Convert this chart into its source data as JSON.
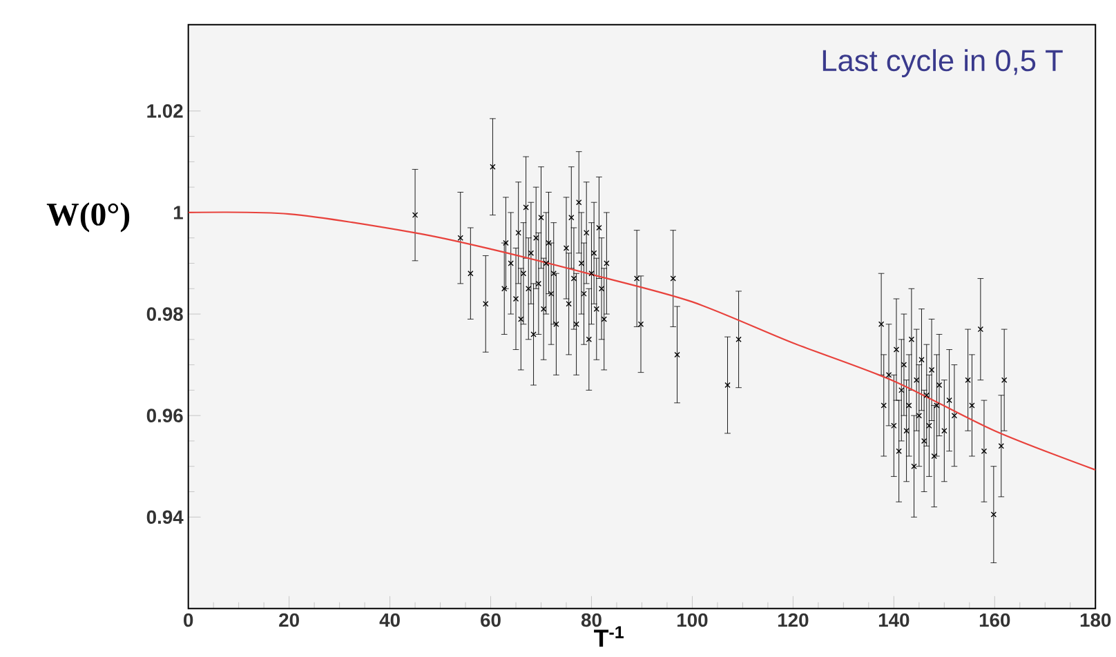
{
  "chart_data": {
    "type": "scatter",
    "title": "Last cycle in 0,5 T",
    "xlabel": "T$^{-1}$",
    "ylabel": "W(0°)",
    "xlim": [
      0,
      180
    ],
    "ylim": [
      0.922,
      1.037
    ],
    "xticks": [
      0,
      20,
      40,
      60,
      80,
      100,
      120,
      140,
      160,
      180
    ],
    "yticks": [
      0.94,
      0.96,
      0.98,
      1,
      1.02
    ],
    "series": [
      {
        "color": "#000000",
        "marker": "cross",
        "x": [
          45,
          54,
          56,
          59,
          60.4,
          62.7,
          63,
          64,
          65,
          65.5,
          66,
          66.5,
          67,
          67.5,
          68,
          68.5,
          69,
          69.5,
          70,
          70.5,
          71,
          71.5,
          72,
          72.5,
          73,
          75,
          75.5,
          76,
          76.5,
          77,
          77.5,
          78,
          78.5,
          79,
          79.5,
          80,
          80.5,
          81,
          81.5,
          82,
          82.5,
          83,
          89.0,
          89.8,
          96.2,
          97.0,
          107,
          109.2,
          137.5,
          138,
          139,
          140,
          140.5,
          141,
          141.5,
          142,
          142.5,
          143,
          143.5,
          144,
          144.5,
          145,
          145.5,
          146,
          146.5,
          147,
          147.5,
          148,
          148.5,
          149,
          150,
          151,
          152,
          154.7,
          155.5,
          157.2,
          157.9,
          159.8,
          161.3,
          161.9
        ],
        "values": [
          0.9995,
          0.995,
          0.988,
          0.982,
          1.009,
          0.985,
          0.994,
          0.99,
          0.983,
          0.996,
          0.979,
          0.988,
          1.001,
          0.985,
          0.992,
          0.976,
          0.995,
          0.986,
          0.999,
          0.981,
          0.99,
          0.994,
          0.984,
          0.988,
          0.978,
          0.993,
          0.982,
          0.999,
          0.987,
          0.978,
          1.002,
          0.99,
          0.984,
          0.996,
          0.975,
          0.988,
          0.992,
          0.981,
          0.997,
          0.985,
          0.979,
          0.99,
          0.987,
          0.978,
          0.987,
          0.972,
          0.966,
          0.975,
          0.978,
          0.962,
          0.968,
          0.958,
          0.973,
          0.953,
          0.965,
          0.97,
          0.957,
          0.962,
          0.975,
          0.95,
          0.967,
          0.96,
          0.971,
          0.955,
          0.964,
          0.958,
          0.969,
          0.952,
          0.962,
          0.966,
          0.957,
          0.963,
          0.96,
          0.967,
          0.962,
          0.977,
          0.953,
          0.9405,
          0.954,
          0.967
        ],
        "errors": [
          0.009,
          0.009,
          0.009,
          0.0095,
          0.0095,
          0.009,
          0.009,
          0.01,
          0.01,
          0.01,
          0.01,
          0.01,
          0.01,
          0.01,
          0.01,
          0.01,
          0.01,
          0.01,
          0.01,
          0.01,
          0.01,
          0.01,
          0.01,
          0.01,
          0.01,
          0.01,
          0.01,
          0.01,
          0.01,
          0.01,
          0.01,
          0.01,
          0.01,
          0.01,
          0.01,
          0.01,
          0.01,
          0.01,
          0.01,
          0.01,
          0.01,
          0.01,
          0.0095,
          0.0095,
          0.0095,
          0.0095,
          0.0095,
          0.0095,
          0.01,
          0.01,
          0.01,
          0.01,
          0.01,
          0.01,
          0.01,
          0.01,
          0.01,
          0.01,
          0.01,
          0.01,
          0.01,
          0.01,
          0.01,
          0.01,
          0.01,
          0.01,
          0.01,
          0.01,
          0.01,
          0.01,
          0.01,
          0.01,
          0.01,
          0.01,
          0.01,
          0.01,
          0.01,
          0.0095,
          0.01,
          0.01
        ]
      },
      {
        "type": "line",
        "color": "#e8423c",
        "x": [
          0,
          20,
          45,
          60,
          80,
          100,
          120,
          140,
          160,
          180
        ],
        "values": [
          1.0,
          0.9997,
          0.996,
          0.9928,
          0.9878,
          0.9824,
          0.9743,
          0.9668,
          0.957,
          0.9493
        ]
      }
    ]
  }
}
